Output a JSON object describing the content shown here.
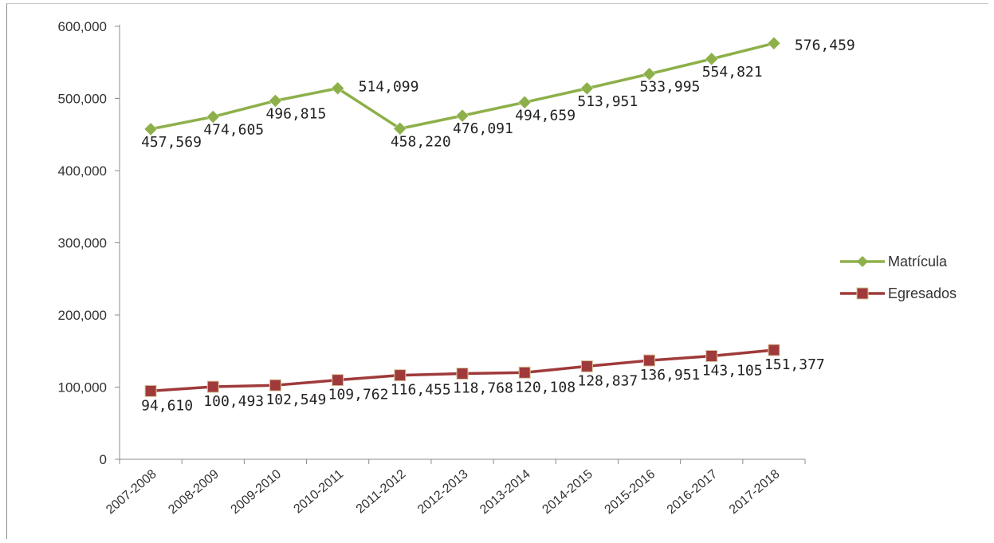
{
  "chart_data": {
    "type": "line",
    "title": "",
    "xlabel": "",
    "ylabel": "",
    "categories": [
      "2007-2008",
      "2008-2009",
      "2009-2010",
      "2010-2011",
      "2011-2012",
      "2012-2013",
      "2013-2014",
      "2014-2015",
      "2015-2016",
      "2016-2017",
      "2017-2018"
    ],
    "ylim": [
      0,
      600000
    ],
    "yticks": [
      "0",
      "100,000",
      "200,000",
      "300,000",
      "400,000",
      "500,000",
      "600,000"
    ],
    "grid": false,
    "legend_position": "right",
    "series": [
      {
        "name": "Matrícula",
        "color": "#8db04a",
        "marker": "diamond",
        "values": [
          457569,
          474605,
          496815,
          514099,
          458220,
          476091,
          494659,
          513951,
          533995,
          554821,
          576459
        ],
        "labels": [
          "457,569",
          "474,605",
          "496,815",
          "514,099",
          "458,220",
          "476,091",
          "494,659",
          "513,951",
          "533,995",
          "554,821",
          "576,459"
        ]
      },
      {
        "name": "Egresados",
        "color": "#a03a3a",
        "marker": "square",
        "values": [
          94610,
          100493,
          102549,
          109762,
          116455,
          118768,
          120108,
          128837,
          136951,
          143105,
          151377
        ],
        "labels": [
          "94,610",
          "100,493",
          "102,549",
          "109,762",
          "116,455",
          "118,768",
          "120,108",
          "128,837",
          "136,951",
          "143,105",
          "151,377"
        ]
      }
    ]
  }
}
